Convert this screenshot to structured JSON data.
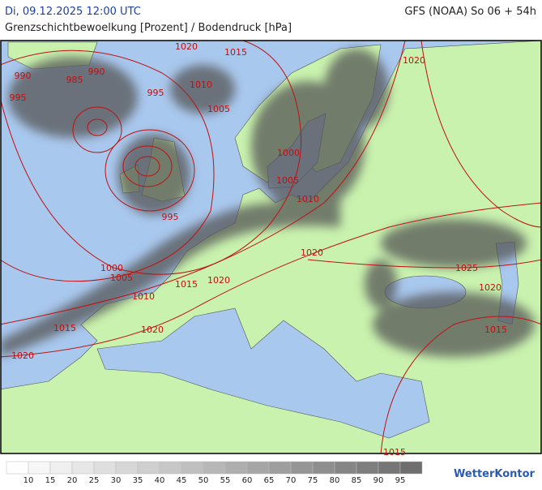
{
  "header": {
    "datetime": "Di, 09.12.2025 12:00 UTC",
    "model": "GFS (NOAA) So 06 + 54h",
    "subtitle": "Grenzschichtbewoelkung [Prozent] / Bodendruck [hPa]"
  },
  "isobar_labels": [
    1020,
    1015,
    990,
    985,
    990,
    995,
    995,
    1010,
    1005,
    1020,
    1000,
    1005,
    1010,
    995,
    1020,
    1025,
    1000,
    1005,
    1015,
    1020,
    1020,
    1010,
    1015,
    1020,
    1015,
    1020,
    1015
  ],
  "legend": {
    "labels": [
      10,
      15,
      20,
      25,
      30,
      35,
      40,
      45,
      50,
      55,
      60,
      65,
      70,
      75,
      80,
      85,
      90,
      95
    ]
  },
  "brand": "WetterKontor"
}
